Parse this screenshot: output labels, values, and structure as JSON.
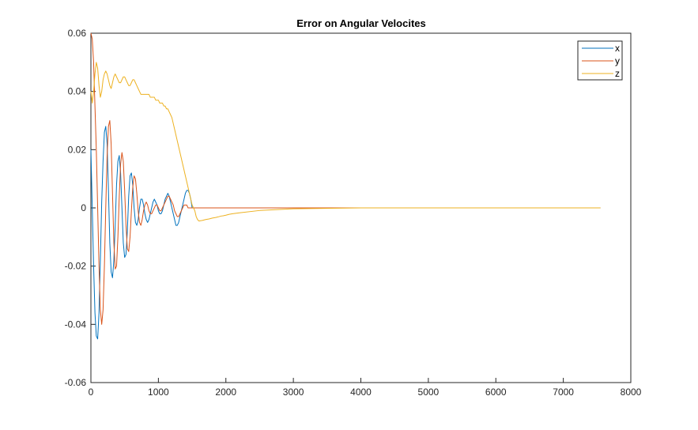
{
  "chart_data": {
    "type": "line",
    "title": "Error on Angular Velocites",
    "xlabel": "",
    "ylabel": "",
    "xlim": [
      0,
      8000
    ],
    "ylim": [
      -0.06,
      0.06
    ],
    "xticks": [
      0,
      1000,
      2000,
      3000,
      4000,
      5000,
      6000,
      7000,
      8000
    ],
    "xtick_labels": [
      "0",
      "1000",
      "2000",
      "3000",
      "4000",
      "5000",
      "6000",
      "7000",
      "8000"
    ],
    "yticks": [
      -0.06,
      -0.04,
      -0.02,
      0,
      0.02,
      0.04,
      0.06
    ],
    "ytick_labels": [
      "-0.06",
      "-0.04",
      "-0.02",
      "0",
      "0.02",
      "0.04",
      "0.06"
    ],
    "grid": false,
    "legend": "top-right",
    "series": [
      {
        "name": "x",
        "color": "#0072BD",
        "x": [
          0,
          20,
          40,
          60,
          80,
          100,
          120,
          140,
          160,
          180,
          200,
          220,
          240,
          260,
          280,
          300,
          320,
          340,
          360,
          380,
          400,
          420,
          440,
          460,
          480,
          500,
          520,
          540,
          560,
          580,
          600,
          620,
          640,
          660,
          680,
          700,
          720,
          740,
          760,
          780,
          800,
          820,
          840,
          860,
          880,
          900,
          920,
          940,
          960,
          980,
          1000,
          1020,
          1040,
          1060,
          1080,
          1100,
          1120,
          1140,
          1160,
          1180,
          1200,
          1220,
          1240,
          1260,
          1280,
          1300,
          1320,
          1340,
          1360,
          1380,
          1400,
          1420,
          1440,
          1460,
          1480,
          1500,
          1520,
          1540,
          1560,
          1580,
          1600,
          1650,
          1700,
          1750,
          1800,
          1850,
          1900,
          1930,
          1960,
          2000,
          2050,
          2100,
          2200,
          2500,
          3000,
          4000,
          5000,
          6000,
          7000,
          7550
        ],
        "values": [
          0.02,
          0.0,
          -0.02,
          -0.036,
          -0.044,
          -0.045,
          -0.036,
          -0.018,
          0.002,
          0.016,
          0.026,
          0.028,
          0.022,
          0.006,
          -0.012,
          -0.022,
          -0.024,
          -0.018,
          -0.006,
          0.008,
          0.016,
          0.018,
          0.012,
          0.0,
          -0.012,
          -0.017,
          -0.016,
          -0.008,
          0.004,
          0.011,
          0.012,
          0.008,
          0.0,
          -0.005,
          -0.006,
          -0.004,
          0.0,
          0.003,
          0.003,
          0.001,
          -0.002,
          -0.004,
          -0.005,
          -0.004,
          -0.002,
          0.0,
          0.002,
          0.003,
          0.002,
          0.001,
          -0.001,
          -0.002,
          -0.002,
          -0.001,
          0.001,
          0.003,
          0.004,
          0.005,
          0.004,
          0.002,
          0.0,
          -0.002,
          -0.004,
          -0.006,
          -0.006,
          -0.005,
          -0.003,
          -0.001,
          0.001,
          0.003,
          0.005,
          0.006,
          0.006,
          0.005,
          0.003,
          0.0,
          0.0,
          0.0,
          0.0,
          0.0,
          0.0,
          0.0,
          0.0,
          0.0,
          0.0,
          0.0,
          0.0,
          0.0,
          0.0,
          0.0,
          0.0,
          0.0,
          0.0,
          0.0,
          0.0,
          0.0,
          0.0,
          0.0,
          0.0,
          0.0
        ]
      },
      {
        "name": "y",
        "color": "#D95319",
        "x": [
          0,
          20,
          40,
          60,
          80,
          100,
          120,
          140,
          160,
          180,
          200,
          220,
          240,
          260,
          280,
          300,
          320,
          340,
          360,
          380,
          400,
          420,
          440,
          460,
          480,
          500,
          520,
          540,
          560,
          580,
          600,
          620,
          640,
          660,
          680,
          700,
          720,
          740,
          760,
          780,
          800,
          820,
          840,
          860,
          880,
          900,
          920,
          940,
          960,
          980,
          1000,
          1020,
          1040,
          1060,
          1080,
          1100,
          1120,
          1140,
          1160,
          1180,
          1200,
          1220,
          1240,
          1260,
          1280,
          1300,
          1320,
          1340,
          1360,
          1380,
          1400,
          1420,
          1440,
          1460,
          1480,
          1500,
          1520,
          1540,
          1560,
          1580,
          1600,
          1650,
          1700,
          1750,
          1800,
          1850,
          1900,
          1930,
          1960,
          2000,
          2050,
          2100,
          2200,
          2500,
          3000,
          4000,
          5000,
          6000,
          7000,
          7550
        ],
        "values": [
          0.06,
          0.058,
          0.05,
          0.035,
          0.02,
          0.0,
          -0.02,
          -0.035,
          -0.04,
          -0.035,
          -0.02,
          0.0,
          0.018,
          0.028,
          0.03,
          0.022,
          0.005,
          -0.012,
          -0.021,
          -0.02,
          -0.01,
          0.004,
          0.015,
          0.019,
          0.016,
          0.006,
          -0.006,
          -0.014,
          -0.015,
          -0.01,
          -0.001,
          0.007,
          0.011,
          0.01,
          0.005,
          -0.001,
          -0.005,
          -0.006,
          -0.004,
          -0.001,
          0.001,
          0.002,
          0.001,
          -0.001,
          -0.002,
          -0.002,
          -0.001,
          0.0,
          0.001,
          0.001,
          0.0,
          -0.001,
          -0.001,
          0.0,
          0.001,
          0.002,
          0.003,
          0.004,
          0.004,
          0.003,
          0.002,
          0.001,
          -0.001,
          -0.002,
          -0.003,
          -0.003,
          -0.002,
          -0.001,
          0.0,
          0.001,
          0.001,
          0.001,
          0.0,
          0.0,
          0.0,
          0.0,
          0.0,
          0.0,
          0.0,
          0.0,
          0.0,
          0.0,
          0.0,
          0.0,
          0.0,
          0.0,
          0.0,
          0.0,
          0.0,
          0.0,
          0.0,
          0.0,
          0.0,
          0.0,
          0.0,
          0.0,
          0.0,
          0.0,
          0.0,
          0.0
        ]
      },
      {
        "name": "z",
        "color": "#EDB120",
        "x": [
          0,
          20,
          40,
          60,
          80,
          100,
          120,
          140,
          160,
          180,
          200,
          220,
          240,
          260,
          280,
          300,
          320,
          340,
          360,
          380,
          400,
          420,
          440,
          460,
          480,
          500,
          520,
          540,
          560,
          580,
          600,
          620,
          640,
          660,
          680,
          700,
          720,
          740,
          760,
          780,
          800,
          820,
          840,
          860,
          880,
          900,
          920,
          940,
          960,
          980,
          1000,
          1020,
          1040,
          1060,
          1080,
          1100,
          1120,
          1140,
          1160,
          1180,
          1200,
          1220,
          1240,
          1260,
          1280,
          1300,
          1320,
          1340,
          1360,
          1380,
          1400,
          1420,
          1440,
          1460,
          1480,
          1500,
          1520,
          1540,
          1560,
          1580,
          1600,
          1650,
          1700,
          1750,
          1800,
          1850,
          1900,
          1930,
          1960,
          2000,
          2050,
          2100,
          2200,
          2500,
          3000,
          4000,
          5000,
          6000,
          7000,
          7550
        ],
        "values": [
          0.04,
          0.036,
          0.04,
          0.046,
          0.05,
          0.048,
          0.042,
          0.038,
          0.04,
          0.044,
          0.046,
          0.047,
          0.046,
          0.044,
          0.042,
          0.041,
          0.043,
          0.045,
          0.046,
          0.045,
          0.044,
          0.043,
          0.043,
          0.044,
          0.045,
          0.045,
          0.044,
          0.043,
          0.042,
          0.042,
          0.043,
          0.044,
          0.044,
          0.043,
          0.042,
          0.041,
          0.04,
          0.039,
          0.039,
          0.039,
          0.039,
          0.039,
          0.039,
          0.039,
          0.038,
          0.038,
          0.038,
          0.038,
          0.037,
          0.037,
          0.037,
          0.036,
          0.036,
          0.036,
          0.035,
          0.035,
          0.034,
          0.034,
          0.033,
          0.032,
          0.031,
          0.029,
          0.027,
          0.025,
          0.023,
          0.021,
          0.019,
          0.017,
          0.015,
          0.013,
          0.011,
          0.009,
          0.007,
          0.005,
          0.003,
          0.001,
          0.0,
          -0.001,
          -0.003,
          -0.004,
          -0.0045,
          -0.0043,
          -0.004,
          -0.0038,
          -0.0035,
          -0.0033,
          -0.003,
          -0.0028,
          -0.0027,
          -0.0025,
          -0.0022,
          -0.002,
          -0.0017,
          -0.0009,
          -0.0003,
          0.0,
          0.0,
          0.0,
          0.0,
          0.0
        ]
      }
    ]
  }
}
